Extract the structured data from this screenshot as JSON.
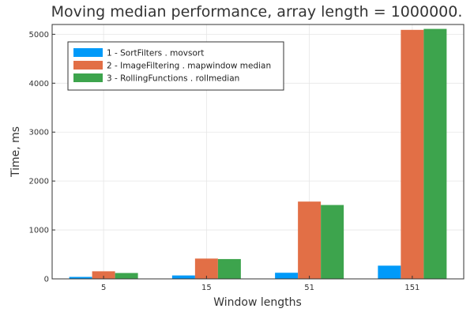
{
  "chart_data": {
    "type": "bar",
    "title": "Moving median performance, array length = 1000000.",
    "xlabel": "Window lengths",
    "ylabel": "Time, ms",
    "categories": [
      "5",
      "15",
      "51",
      "151"
    ],
    "ylim": [
      0,
      5200
    ],
    "yticks": [
      0,
      1000,
      2000,
      3000,
      4000,
      5000
    ],
    "grid": true,
    "legend_position": "top-left",
    "series": [
      {
        "name": "1 - SortFilters . movsort",
        "color": "#009af9",
        "values": [
          40,
          70,
          125,
          270
        ]
      },
      {
        "name": "2 - ImageFiltering . mapwindow median",
        "color": "#e26f46",
        "values": [
          155,
          415,
          1580,
          5090
        ]
      },
      {
        "name": "3 - RollingFunctions . rollmedian",
        "color": "#3da44d",
        "values": [
          120,
          405,
          1510,
          5110
        ]
      }
    ]
  }
}
